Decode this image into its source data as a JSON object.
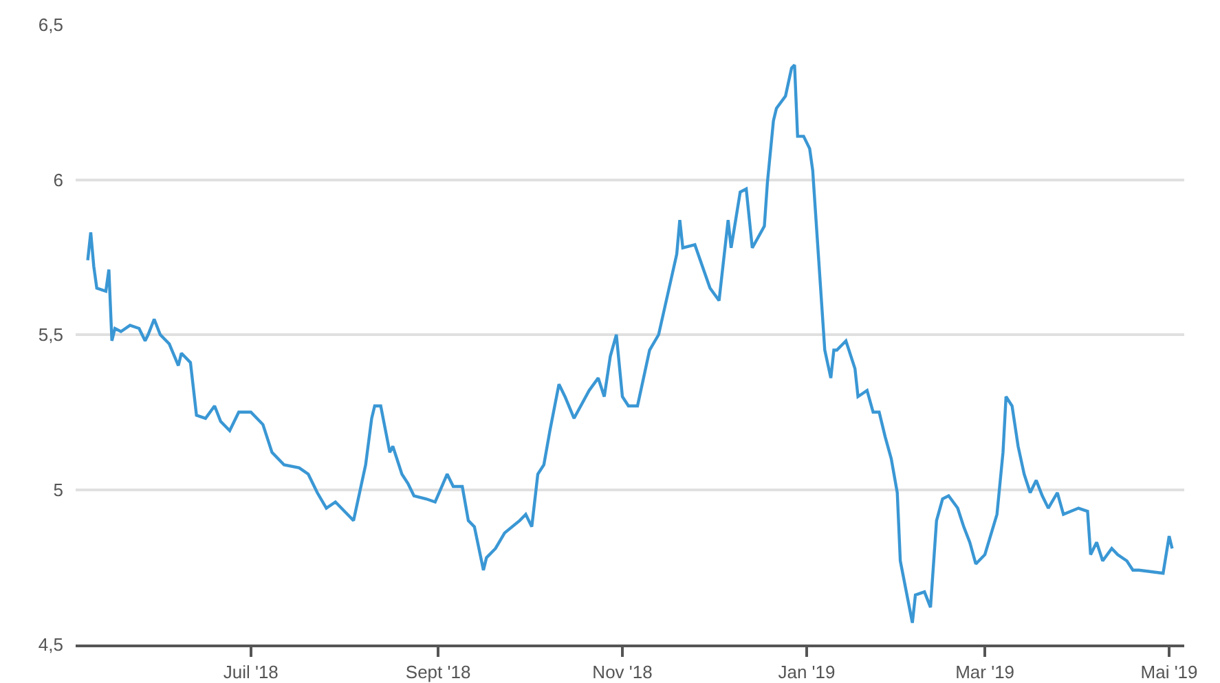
{
  "chart_data": {
    "type": "line",
    "x": [
      "2018-05-08",
      "2018-05-09",
      "2018-05-10",
      "2018-05-11",
      "2018-05-14",
      "2018-05-15",
      "2018-05-16",
      "2018-05-17",
      "2018-05-19",
      "2018-05-22",
      "2018-05-25",
      "2018-05-27",
      "2018-05-28",
      "2018-05-30",
      "2018-06-01",
      "2018-06-04",
      "2018-06-07",
      "2018-06-08",
      "2018-06-11",
      "2018-06-13",
      "2018-06-16",
      "2018-06-19",
      "2018-06-21",
      "2018-06-24",
      "2018-06-27",
      "2018-07-01",
      "2018-07-05",
      "2018-07-08",
      "2018-07-12",
      "2018-07-17",
      "2018-07-20",
      "2018-07-23",
      "2018-07-26",
      "2018-07-29",
      "2018-08-04",
      "2018-08-06",
      "2018-08-08",
      "2018-08-10",
      "2018-08-11",
      "2018-08-13",
      "2018-08-16",
      "2018-08-17",
      "2018-08-20",
      "2018-08-22",
      "2018-08-24",
      "2018-08-28",
      "2018-08-31",
      "2018-09-04",
      "2018-09-06",
      "2018-09-09",
      "2018-09-11",
      "2018-09-13",
      "2018-09-16",
      "2018-09-17",
      "2018-09-20",
      "2018-09-23",
      "2018-09-28",
      "2018-09-30",
      "2018-10-02",
      "2018-10-04",
      "2018-10-06",
      "2018-10-08",
      "2018-10-11",
      "2018-10-13",
      "2018-10-16",
      "2018-10-21",
      "2018-10-24",
      "2018-10-26",
      "2018-10-28",
      "2018-10-30",
      "2018-11-01",
      "2018-11-03",
      "2018-11-06",
      "2018-11-10",
      "2018-11-13",
      "2018-11-16",
      "2018-11-19",
      "2018-11-20",
      "2018-11-21",
      "2018-11-25",
      "2018-11-30",
      "2018-12-03",
      "2018-12-06",
      "2018-12-07",
      "2018-12-10",
      "2018-12-12",
      "2018-12-14",
      "2018-12-18",
      "2018-12-19",
      "2018-12-21",
      "2018-12-22",
      "2018-12-25",
      "2018-12-27",
      "2018-12-28",
      "2018-12-29",
      "2018-12-31",
      "2019-01-02",
      "2019-01-03",
      "2019-01-05",
      "2019-01-07",
      "2019-01-09",
      "2019-01-10",
      "2019-01-11",
      "2019-01-14",
      "2019-01-17",
      "2019-01-18",
      "2019-01-21",
      "2019-01-23",
      "2019-01-25",
      "2019-01-27",
      "2019-01-29",
      "2019-01-31",
      "2019-02-01",
      "2019-02-02",
      "2019-02-05",
      "2019-02-06",
      "2019-02-09",
      "2019-02-11",
      "2019-02-13",
      "2019-02-15",
      "2019-02-17",
      "2019-02-20",
      "2019-02-22",
      "2019-02-24",
      "2019-02-26",
      "2019-03-01",
      "2019-03-05",
      "2019-03-07",
      "2019-03-08",
      "2019-03-10",
      "2019-03-12",
      "2019-03-14",
      "2019-03-16",
      "2019-03-18",
      "2019-03-20",
      "2019-03-22",
      "2019-03-25",
      "2019-03-27",
      "2019-04-01",
      "2019-04-04",
      "2019-04-05",
      "2019-04-07",
      "2019-04-09",
      "2019-04-12",
      "2019-04-14",
      "2019-04-17",
      "2019-04-19",
      "2019-04-21",
      "2019-04-29",
      "2019-05-01",
      "2019-05-02"
    ],
    "series": [
      {
        "color": "#3a97d4",
        "values": [
          5.74,
          5.83,
          5.72,
          5.65,
          5.64,
          5.71,
          5.48,
          5.52,
          5.51,
          5.53,
          5.52,
          5.48,
          5.5,
          5.55,
          5.5,
          5.47,
          5.4,
          5.44,
          5.41,
          5.24,
          5.23,
          5.27,
          5.22,
          5.19,
          5.25,
          5.25,
          5.21,
          5.12,
          5.08,
          5.07,
          5.05,
          4.99,
          4.94,
          4.96,
          4.9,
          4.99,
          5.08,
          5.23,
          5.27,
          5.27,
          5.12,
          5.14,
          5.05,
          5.02,
          4.98,
          4.97,
          4.96,
          5.05,
          5.01,
          5.01,
          4.9,
          4.88,
          4.74,
          4.78,
          4.81,
          4.86,
          4.9,
          4.92,
          4.88,
          5.05,
          5.08,
          5.19,
          5.34,
          5.3,
          5.23,
          5.32,
          5.36,
          5.3,
          5.43,
          5.5,
          5.3,
          5.27,
          5.27,
          5.45,
          5.5,
          5.63,
          5.76,
          5.87,
          5.78,
          5.79,
          5.65,
          5.61,
          5.87,
          5.78,
          5.96,
          5.97,
          5.78,
          5.85,
          5.99,
          6.19,
          6.23,
          6.27,
          6.36,
          6.37,
          6.14,
          6.14,
          6.1,
          6.03,
          5.74,
          5.45,
          5.36,
          5.45,
          5.45,
          5.48,
          5.39,
          5.3,
          5.32,
          5.25,
          5.25,
          5.17,
          5.1,
          4.99,
          4.77,
          4.72,
          4.57,
          4.66,
          4.67,
          4.62,
          4.9,
          4.97,
          4.98,
          4.94,
          4.88,
          4.83,
          4.76,
          4.79,
          4.92,
          5.12,
          5.3,
          5.27,
          5.14,
          5.05,
          4.99,
          5.03,
          4.98,
          4.94,
          4.99,
          4.92,
          4.94,
          4.93,
          4.79,
          4.83,
          4.77,
          4.81,
          4.79,
          4.77,
          4.74,
          4.74,
          4.73,
          4.85,
          4.81
        ]
      }
    ],
    "xlim": [
      "2018-05-04",
      "2019-05-06"
    ],
    "xticks": [
      {
        "value": "2018-07-01",
        "label": "Juil '18"
      },
      {
        "value": "2018-09-01",
        "label": "Sept '18"
      },
      {
        "value": "2018-11-01",
        "label": "Nov '18"
      },
      {
        "value": "2019-01-01",
        "label": "Jan '19"
      },
      {
        "value": "2019-03-01",
        "label": "Mar '19"
      },
      {
        "value": "2019-05-01",
        "label": "Mai '19"
      }
    ],
    "ylim": [
      4.5,
      6.5
    ],
    "yticks": [
      {
        "value": 4.5,
        "label": "4,5"
      },
      {
        "value": 5,
        "label": "5"
      },
      {
        "value": 5.5,
        "label": "5,5"
      },
      {
        "value": 6,
        "label": "6"
      },
      {
        "value": 6.5,
        "label": "6,5"
      }
    ],
    "grid": "y",
    "marker": "none",
    "line_style": "solid"
  }
}
